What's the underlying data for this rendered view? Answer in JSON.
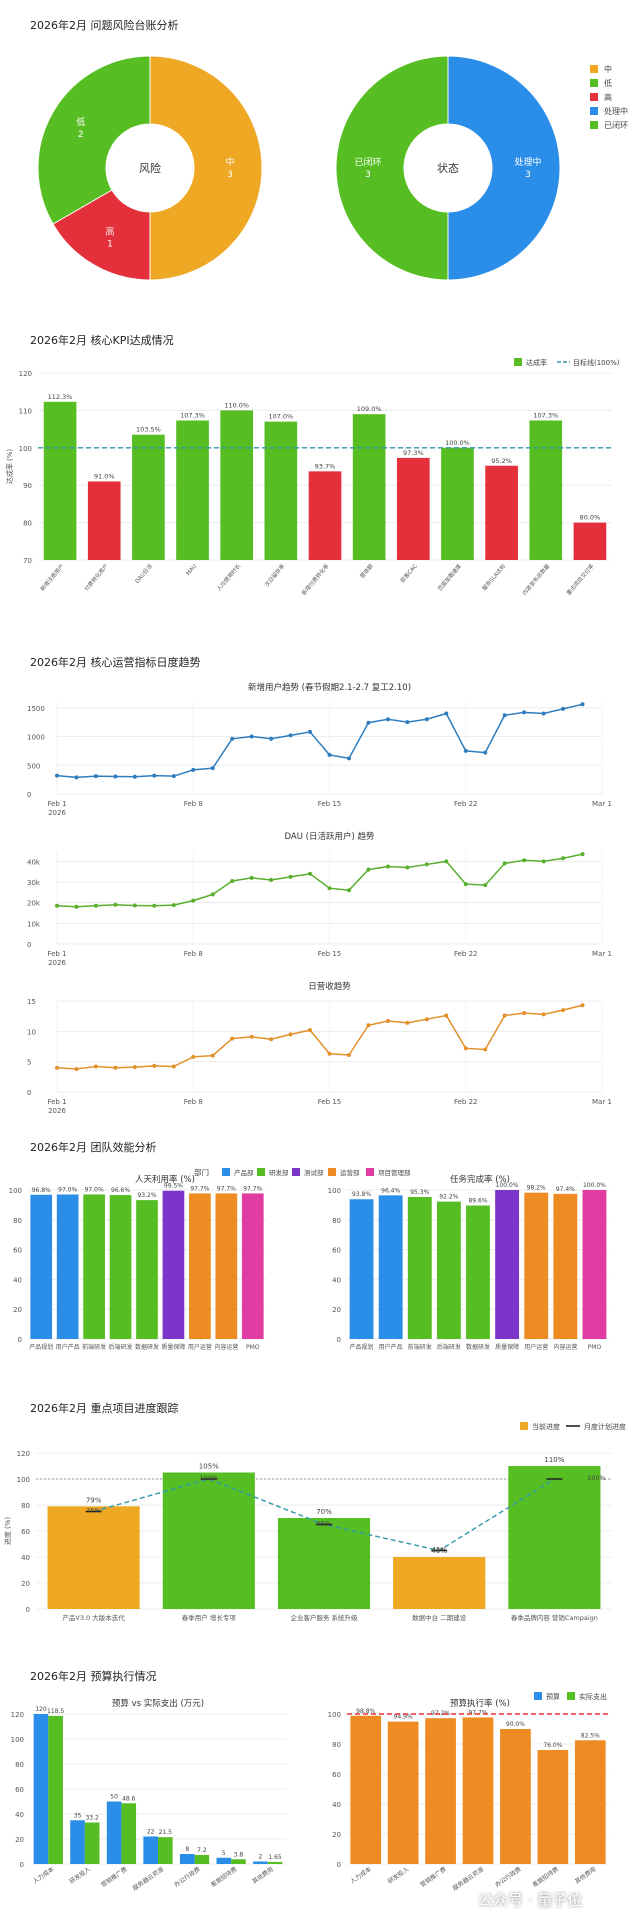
{
  "colors": {
    "orange": "#EEA823",
    "green": "#56BE23",
    "red": "#E3303B",
    "blue": "#2A8DE8",
    "purple": "#7B35C9",
    "darkorange": "#EE8B22",
    "pink": "#E13CA2",
    "line_blue": "#2F7DBE",
    "line_green": "#5AAE2D",
    "line_orange": "#E1902A",
    "teal": "#2F9AA9"
  },
  "watermark": "公众号 · 量子位",
  "chart_data": [
    {
      "id": "risk",
      "type": "pie",
      "title": "2026年2月 问题风险台账分析",
      "charts": [
        {
          "center_label": "风险",
          "slices": [
            {
              "label": "中",
              "value": 3,
              "color": "#EEA823"
            },
            {
              "label": "高",
              "value": 1,
              "color": "#E3303B"
            },
            {
              "label": "低",
              "value": 2,
              "color": "#56BE23"
            }
          ]
        },
        {
          "center_label": "状态",
          "slices": [
            {
              "label": "处理中",
              "value": 3,
              "color": "#2A8DE8"
            },
            {
              "label": "已闭环",
              "value": 3,
              "color": "#56BE23"
            }
          ]
        }
      ],
      "legend": [
        {
          "label": "中",
          "color": "#EEA823"
        },
        {
          "label": "低",
          "color": "#56BE23"
        },
        {
          "label": "高",
          "color": "#E3303B"
        },
        {
          "label": "处理中",
          "color": "#2A8DE8"
        },
        {
          "label": "已闭环",
          "color": "#56BE23"
        }
      ]
    },
    {
      "id": "kpi",
      "type": "bar",
      "title": "2026年2月 核心KPI达成情况",
      "ylabel": "达成率 (%)",
      "ylim": [
        70,
        120
      ],
      "yticks": [
        70,
        80,
        90,
        100,
        110,
        120
      ],
      "target": 100,
      "legend": [
        "达成率",
        "目标线(100%)"
      ],
      "categories": [
        "新增注册用户",
        "付费转化用户",
        "DAU日活",
        "MAU",
        "人均使用时长",
        "次日留存率",
        "新增付费转化率",
        "营收额",
        "获客CAC",
        "页面加载速度",
        "服务SLA达标",
        "内容发布总数量",
        "重点项目交付率"
      ],
      "values": [
        112.3,
        91.0,
        103.5,
        107.3,
        110.0,
        107.0,
        93.7,
        109.0,
        97.3,
        100.0,
        95.2,
        107.3,
        80.0
      ],
      "labels": [
        "112.3%",
        "91.0%",
        "103.5%",
        "107.3%",
        "110.0%",
        "107.0%",
        "93.7%",
        "109.0%",
        "97.3%",
        "100.0%",
        "95.2%",
        "107.3%",
        "80.0%"
      ],
      "colors": [
        "#56BE23",
        "#E3303B",
        "#56BE23",
        "#56BE23",
        "#56BE23",
        "#56BE23",
        "#E3303B",
        "#56BE23",
        "#E3303B",
        "#56BE23",
        "#E3303B",
        "#56BE23",
        "#E3303B"
      ]
    },
    {
      "id": "trend",
      "type": "line",
      "title": "2026年2月 核心运营指标日度趋势",
      "xticks": [
        "Feb 1",
        "Feb 8",
        "Feb 15",
        "Feb 22",
        "Mar 1"
      ],
      "xyear": "2026",
      "panels": [
        {
          "subtitle": "新增用户趋势 (春节假期2.1-2.7 复工2.10)",
          "color": "#2F7DBE",
          "ylim": [
            0,
            1600
          ],
          "yticks": [
            0,
            500,
            1000,
            1500
          ],
          "ytick_labels": [
            "0",
            "500",
            "1000",
            "1500"
          ],
          "values": [
            320,
            290,
            310,
            305,
            300,
            320,
            310,
            420,
            450,
            960,
            1000,
            960,
            1020,
            1080,
            680,
            620,
            1240,
            1300,
            1250,
            1300,
            1400,
            750,
            720,
            1370,
            1420,
            1400,
            1480,
            1560
          ]
        },
        {
          "subtitle": "DAU (日活跃用户) 趋势",
          "color": "#5AAE2D",
          "ylim": [
            0,
            45000
          ],
          "yticks": [
            0,
            10000,
            20000,
            30000,
            40000
          ],
          "ytick_labels": [
            "0",
            "10k",
            "20k",
            "30k",
            "40k"
          ],
          "values": [
            18500,
            18000,
            18500,
            19000,
            18600,
            18500,
            18800,
            21000,
            24000,
            30500,
            32000,
            31000,
            32500,
            34000,
            27000,
            26000,
            36000,
            37500,
            37000,
            38500,
            40000,
            29000,
            28500,
            39000,
            40500,
            40000,
            41500,
            43500
          ]
        },
        {
          "subtitle": "日营收趋势",
          "color": "#E1902A",
          "ylim": [
            0,
            15
          ],
          "yticks": [
            0,
            5,
            10,
            15
          ],
          "ytick_labels": [
            "0",
            "5",
            "10",
            "15"
          ],
          "values": [
            4.0,
            3.8,
            4.2,
            4.0,
            4.1,
            4.3,
            4.2,
            5.8,
            6.0,
            8.8,
            9.1,
            8.7,
            9.5,
            10.2,
            6.3,
            6.1,
            11.0,
            11.7,
            11.4,
            12.0,
            12.6,
            7.2,
            7.0,
            12.6,
            13.0,
            12.8,
            13.5,
            14.3
          ]
        }
      ]
    },
    {
      "id": "team",
      "type": "bar",
      "title": "2026年2月 团队效能分析",
      "legend_title": "部门",
      "legend": [
        {
          "label": "产品部",
          "color": "#2A8DE8"
        },
        {
          "label": "研发部",
          "color": "#56BE23"
        },
        {
          "label": "测试部",
          "color": "#7B35C9"
        },
        {
          "label": "运营部",
          "color": "#EE8B22"
        },
        {
          "label": "项目管理部",
          "color": "#E13CA2"
        }
      ],
      "categories": [
        "产品规划",
        "用户产品",
        "前端研发",
        "后端研发",
        "数据研发",
        "质量保障",
        "用户运营",
        "内容运营",
        "PMO"
      ],
      "colors": [
        "#2A8DE8",
        "#2A8DE8",
        "#56BE23",
        "#56BE23",
        "#56BE23",
        "#7B35C9",
        "#EE8B22",
        "#EE8B22",
        "#E13CA2"
      ],
      "ylim": [
        0,
        100
      ],
      "yticks": [
        0,
        20,
        40,
        60,
        80,
        100
      ],
      "panels": [
        {
          "subtitle": "人天利用率 (%)",
          "values": [
            96.8,
            97.0,
            97.0,
            96.6,
            93.2,
            99.5,
            97.7,
            97.7,
            97.7
          ],
          "labels": [
            "96.8%",
            "97.0%",
            "97.0%",
            "96.6%",
            "93.2%",
            "99.5%",
            "97.7%",
            "97.7%",
            "97.7%"
          ]
        },
        {
          "subtitle": "任务完成率 (%)",
          "values": [
            93.8,
            96.4,
            95.3,
            92.2,
            89.6,
            100.0,
            98.2,
            97.4,
            100.0
          ],
          "labels": [
            "93.8%",
            "96.4%",
            "95.3%",
            "92.2%",
            "89.6%",
            "100.0%",
            "98.2%",
            "97.4%",
            "100.0%"
          ]
        }
      ]
    },
    {
      "id": "projects",
      "type": "bar",
      "title": "2026年2月 重点项目进度跟踪",
      "ylabel": "进度 (%)",
      "ylim": [
        0,
        120
      ],
      "yticks": [
        0,
        20,
        40,
        60,
        80,
        100,
        120
      ],
      "legend": [
        "当前进度",
        "月度计划进度"
      ],
      "categories": [
        "产品V3.0 大版本迭代",
        "春季用户 增长专项",
        "企业客户服务 系统升级",
        "数据中台 二期建设",
        "春季品牌内容 营销Campaign"
      ],
      "values": [
        79,
        105,
        70,
        40,
        110
      ],
      "labels": [
        "79%",
        "105%",
        "70%",
        "40%",
        "110%"
      ],
      "plan": [
        75,
        100,
        65,
        45,
        100
      ],
      "plan_labels": [
        "75%",
        "100%",
        "65%",
        "45%",
        "100%"
      ],
      "colors": [
        "#EEA823",
        "#56BE23",
        "#56BE23",
        "#EEA823",
        "#56BE23"
      ]
    },
    {
      "id": "budget",
      "type": "bar",
      "title": "2026年2月 预算执行情况",
      "legend": [
        {
          "label": "预算",
          "color": "#2A8DE8"
        },
        {
          "label": "实际支出",
          "color": "#56BE23"
        }
      ],
      "categories": [
        "人力成本",
        "研发投入",
        "营销推广费",
        "服务器云资源",
        "办公行政费",
        "差旅招待费",
        "其他费用"
      ],
      "panels": [
        {
          "subtitle": "预算 vs 实际支出 (万元)",
          "ylim": [
            0,
            120
          ],
          "yticks": [
            0,
            20,
            40,
            60,
            80,
            100,
            120
          ],
          "series": [
            {
              "name": "预算",
              "values": [
                120,
                35,
                50,
                22,
                8,
                5,
                2
              ],
              "labels": [
                "120",
                "35",
                "50",
                "22",
                "8",
                "5",
                "2"
              ]
            },
            {
              "name": "实际支出",
              "values": [
                118.5,
                33.2,
                48.6,
                21.5,
                7.2,
                3.8,
                1.65
              ],
              "labels": [
                "118.5",
                "33.2",
                "48.6",
                "21.5",
                "7.2",
                "3.8",
                "1.65"
              ]
            }
          ]
        },
        {
          "subtitle": "预算执行率 (%)",
          "ylim": [
            0,
            100
          ],
          "yticks": [
            0,
            20,
            40,
            60,
            80,
            100
          ],
          "values": [
            98.8,
            94.9,
            97.2,
            97.7,
            90.0,
            76.0,
            82.5
          ],
          "labels": [
            "98.8%",
            "94.9%",
            "97.2%",
            "97.7%",
            "90.0%",
            "76.0%",
            "82.5%"
          ]
        }
      ]
    }
  ]
}
